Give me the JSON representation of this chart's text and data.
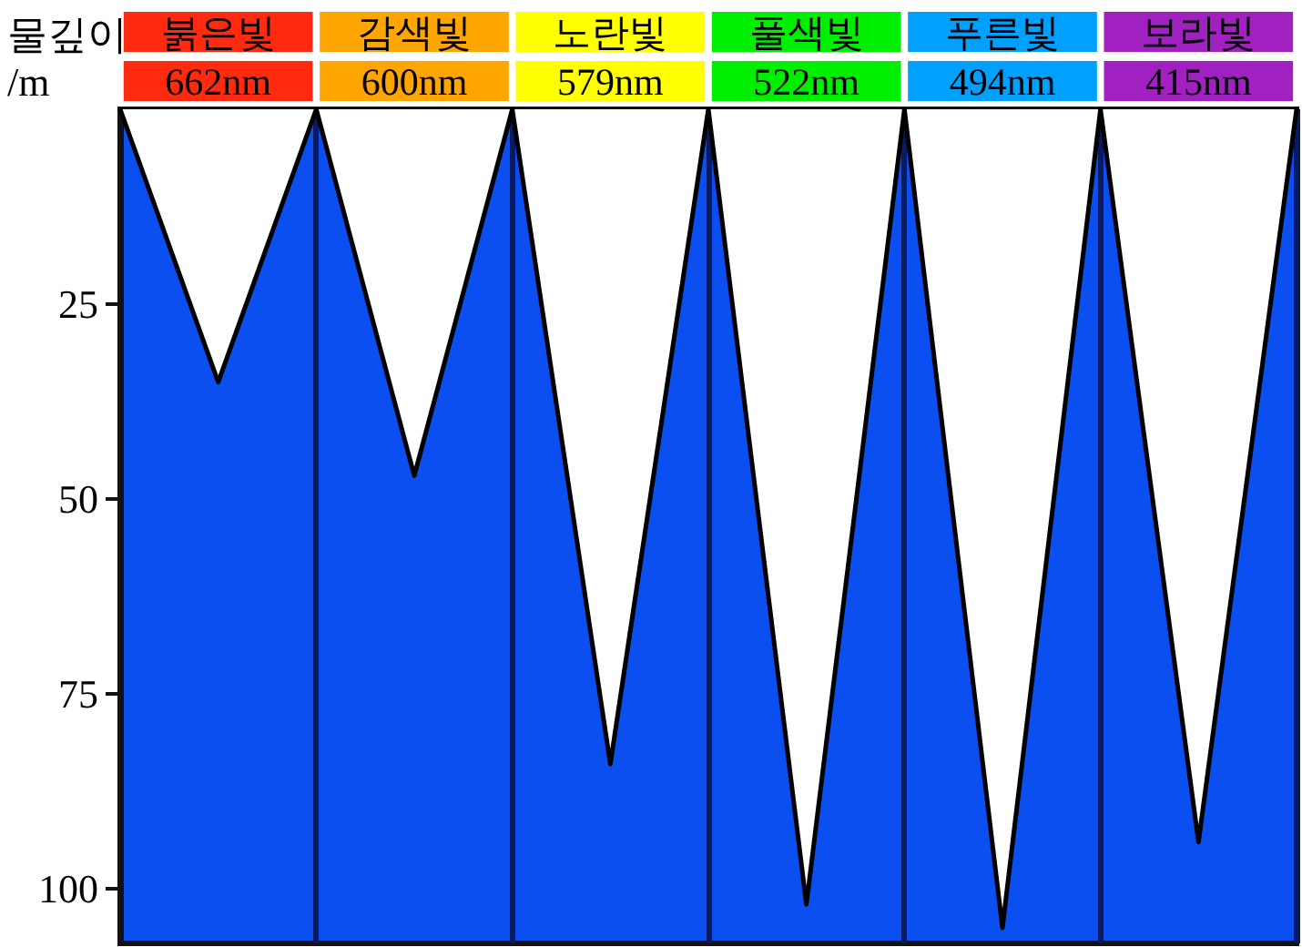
{
  "chart_data": {
    "type": "area",
    "ylabel": "물깊이\n/m",
    "categories": [
      null,
      "붉은빛\n662nm",
      null,
      "감색빛\n600nm",
      null,
      "노란빛\n579nm",
      null,
      "풀색빛\n522nm",
      null,
      "푸른빛\n494nm",
      null,
      "보라빛\n415nm",
      null
    ],
    "values": [
      0,
      35,
      0,
      47,
      0,
      84,
      0,
      102,
      0,
      105,
      0,
      94,
      0
    ],
    "color": "#ffffff",
    "ylim": [
      107,
      0
    ],
    "yticks": [
      25,
      50,
      75,
      100
    ],
    "grid": "x"
  }
}
